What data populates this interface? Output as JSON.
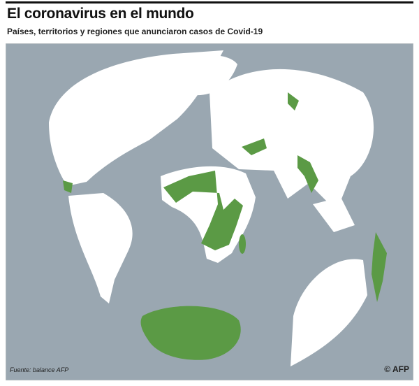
{
  "header": {
    "title": "El coronavirus en el mundo",
    "subtitle": "Países, territorios y regiones que anunciaron casos de Covid-19"
  },
  "footer": {
    "source": "Fuente: balance AFP",
    "credit": "© AFP"
  }
}
